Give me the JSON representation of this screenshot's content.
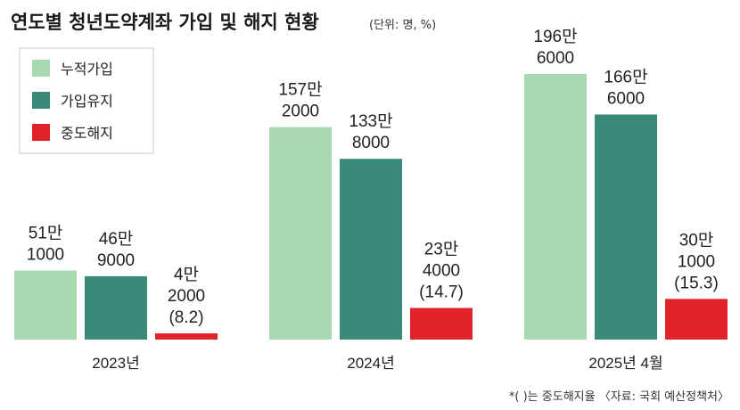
{
  "title": "연도별 청년도약계좌 가입 및 해지 현황",
  "unit_note": "(단위: 명, %)",
  "footnote": "*( )는 중도해지율 〈자료: 국회 예산정책처〉",
  "colors": {
    "누적가입": "#a8d9b0",
    "가입유지": "#3a8a78",
    "중도해지": "#e02229"
  },
  "chart_data": {
    "type": "bar",
    "categories": [
      "2023년",
      "2024년",
      "2025년 4월"
    ],
    "series": [
      {
        "name": "누적가입",
        "values": [
          511000,
          1572000,
          1966000
        ],
        "labels": [
          [
            "51만",
            "1000"
          ],
          [
            "157만",
            "2000"
          ],
          [
            "196만",
            "6000"
          ]
        ]
      },
      {
        "name": "가입유지",
        "values": [
          469000,
          1338000,
          1666000
        ],
        "labels": [
          [
            "46만",
            "9000"
          ],
          [
            "133만",
            "8000"
          ],
          [
            "166만",
            "6000"
          ]
        ]
      },
      {
        "name": "중도해지",
        "values": [
          42000,
          234000,
          301000
        ],
        "labels": [
          [
            "4만",
            "2000",
            "(8.2)"
          ],
          [
            "23만",
            "4000",
            "(14.7)"
          ],
          [
            "30만",
            "1000",
            "(15.3)"
          ]
        ]
      }
    ],
    "legend": "top-left",
    "grid": false
  }
}
